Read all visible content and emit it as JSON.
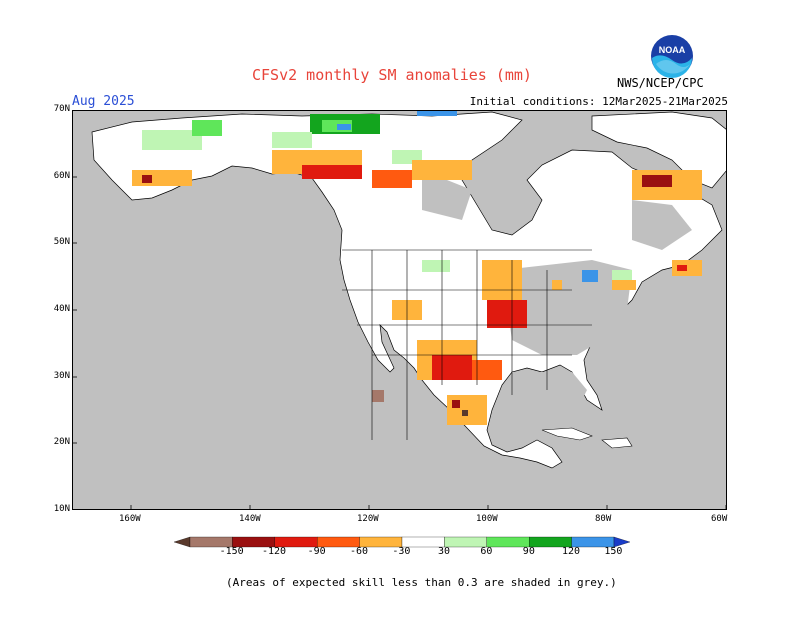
{
  "header": {
    "title": "CFSv2 monthly SM anomalies (mm)",
    "month": "Aug 2025",
    "initial_conditions": "Initial conditions: 12Mar2025-21Mar2025",
    "agency": "NWS/NCEP/CPC",
    "logo_text": "NOAA"
  },
  "map": {
    "region": "North America",
    "lat_labels": [
      "70N",
      "60N",
      "50N",
      "40N",
      "30N",
      "20N",
      "10N"
    ],
    "lon_labels": [
      "160W",
      "140W",
      "120W",
      "100W",
      "80W",
      "60W"
    ],
    "colors": {
      "ocean": "#c0c0c0",
      "land_low_skill": "#c0c0c0",
      "land": "#ffffff"
    }
  },
  "legend": {
    "labels": [
      "-150",
      "-120",
      "-90",
      "-60",
      "-30",
      "30",
      "60",
      "90",
      "120",
      "150"
    ],
    "colors": [
      "#5a3a2c",
      "#a5786a",
      "#9a1010",
      "#e01a0f",
      "#ff5a10",
      "#ffb43c",
      "#ffffff",
      "#bff5b4",
      "#5fe65a",
      "#13a51e",
      "#3b94e8",
      "#1a3cc8"
    ]
  },
  "footnote": "(Areas of expected skill less than 0.3 are shaded in grey.)"
}
